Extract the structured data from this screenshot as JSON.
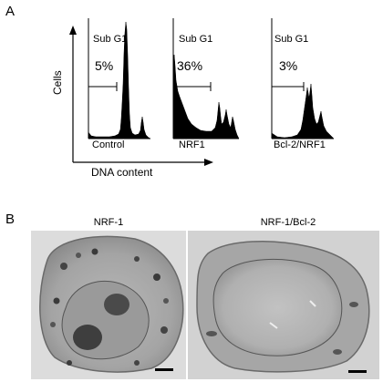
{
  "panel_a": {
    "letter": "A",
    "y_axis_label": "Cells",
    "x_axis_label": "DNA content",
    "histograms": [
      {
        "gate_label": "Sub G1",
        "percent": "5%",
        "sample": "Control"
      },
      {
        "gate_label": "Sub G1",
        "percent": "36%",
        "sample": "NRF1"
      },
      {
        "gate_label": "Sub G1",
        "percent": "3%",
        "sample": "Bcl-2/NRF1"
      }
    ]
  },
  "panel_b": {
    "letter": "B",
    "micrographs": [
      {
        "title": "NRF-1"
      },
      {
        "title": "NRF-1/Bcl-2"
      }
    ]
  }
}
